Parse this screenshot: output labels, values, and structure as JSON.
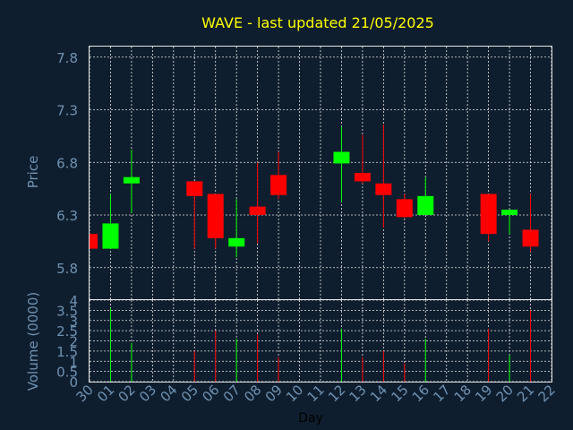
{
  "chart_data": {
    "type": "candlestick",
    "title": "WAVE - last updated 21/05/2025",
    "xlabel": "Day",
    "colors": {
      "background": "#0f1e2e",
      "up": "#00ff00",
      "down": "#ff0000",
      "title": "#ffff00",
      "axis_text": "#6f92b2",
      "grid": "#e6e6e6"
    },
    "x_tick_labels": [
      "30",
      "01",
      "02",
      "03",
      "04",
      "05",
      "06",
      "07",
      "08",
      "09",
      "10",
      "11",
      "12",
      "13",
      "14",
      "15",
      "16",
      "17",
      "18",
      "19",
      "20",
      "21",
      "22"
    ],
    "price_panel": {
      "ylabel": "Price",
      "ylim": [
        5.5,
        7.9
      ],
      "yticks": [
        5.8,
        6.3,
        6.8,
        7.3,
        7.8
      ],
      "tick_labels": [
        "5.8",
        "6.3",
        "6.8",
        "7.3",
        "7.8"
      ],
      "grid": true
    },
    "volume_panel": {
      "ylabel": "Volume (0000)",
      "ylim": [
        0,
        4
      ],
      "yticks": [
        0,
        0.5,
        1,
        1.5,
        2,
        2.5,
        3,
        3.5,
        4
      ],
      "tick_labels": [
        "0",
        "0.5",
        "1",
        "1.5",
        "2",
        "2.5",
        "3",
        "3.5",
        "4"
      ],
      "grid": true
    },
    "candles": [
      {
        "day": "30",
        "open": 6.12,
        "high": 6.12,
        "low": 5.98,
        "close": 5.98
      },
      {
        "day": "01",
        "open": 5.98,
        "high": 6.5,
        "low": 5.98,
        "close": 6.22
      },
      {
        "day": "02",
        "open": 6.6,
        "high": 6.92,
        "low": 6.32,
        "close": 6.66
      },
      {
        "day": "05",
        "open": 6.62,
        "high": 6.62,
        "low": 5.98,
        "close": 6.48
      },
      {
        "day": "06",
        "open": 6.5,
        "high": 6.5,
        "low": 5.98,
        "close": 6.08
      },
      {
        "day": "07",
        "open": 6.0,
        "high": 6.45,
        "low": 5.9,
        "close": 6.08
      },
      {
        "day": "08",
        "open": 6.38,
        "high": 6.8,
        "low": 6.03,
        "close": 6.3
      },
      {
        "day": "09",
        "open": 6.68,
        "high": 6.9,
        "low": 6.45,
        "close": 6.49
      },
      {
        "day": "12",
        "open": 6.79,
        "high": 7.14,
        "low": 6.42,
        "close": 6.9
      },
      {
        "day": "13",
        "open": 6.7,
        "high": 7.06,
        "low": 6.6,
        "close": 6.62
      },
      {
        "day": "14",
        "open": 6.6,
        "high": 7.16,
        "low": 6.18,
        "close": 6.49
      },
      {
        "day": "15",
        "open": 6.45,
        "high": 6.5,
        "low": 6.27,
        "close": 6.28
      },
      {
        "day": "16",
        "open": 6.3,
        "high": 6.66,
        "low": 6.3,
        "close": 6.48
      },
      {
        "day": "19",
        "open": 6.5,
        "high": 6.5,
        "low": 6.05,
        "close": 6.12
      },
      {
        "day": "20",
        "open": 6.3,
        "high": 6.35,
        "low": 6.12,
        "close": 6.35
      },
      {
        "day": "21",
        "open": 6.16,
        "high": 6.5,
        "low": 5.95,
        "close": 6.0
      }
    ],
    "volumes": [
      {
        "day": "01",
        "value": 3.6,
        "dir": "up"
      },
      {
        "day": "02",
        "value": 1.9,
        "dir": "up"
      },
      {
        "day": "05",
        "value": 1.5,
        "dir": "down"
      },
      {
        "day": "06",
        "value": 2.5,
        "dir": "down"
      },
      {
        "day": "07",
        "value": 2.1,
        "dir": "up"
      },
      {
        "day": "08",
        "value": 2.3,
        "dir": "down"
      },
      {
        "day": "09",
        "value": 1.2,
        "dir": "down"
      },
      {
        "day": "12",
        "value": 2.6,
        "dir": "up"
      },
      {
        "day": "13",
        "value": 1.2,
        "dir": "down"
      },
      {
        "day": "14",
        "value": 1.5,
        "dir": "down"
      },
      {
        "day": "15",
        "value": 0.9,
        "dir": "down"
      },
      {
        "day": "16",
        "value": 2.1,
        "dir": "up"
      },
      {
        "day": "19",
        "value": 2.6,
        "dir": "down"
      },
      {
        "day": "20",
        "value": 1.3,
        "dir": "up"
      },
      {
        "day": "21",
        "value": 3.5,
        "dir": "down"
      }
    ]
  }
}
